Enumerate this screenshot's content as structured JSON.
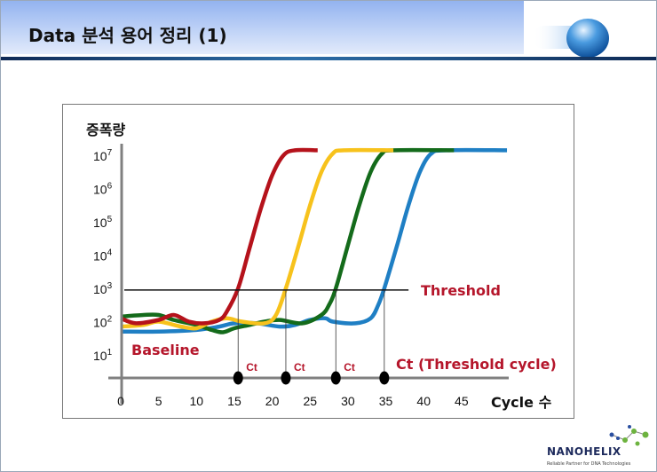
{
  "header": {
    "title": "Data 분석 용어 정리 (1)"
  },
  "logo": {
    "name": "NANOHELIX",
    "tagline": "Reliable Partner for DNA Technologies"
  },
  "chart_data": {
    "type": "line",
    "title": "",
    "ylabel": "증폭량",
    "xlabel": "Cycle 수",
    "y_scale": "log10",
    "ylim_log10": [
      0.3,
      7.4
    ],
    "xlim": [
      0,
      52
    ],
    "x_ticks": [
      "0",
      "5",
      "10",
      "15",
      "20",
      "25",
      "30",
      "35",
      "40",
      "45"
    ],
    "x_tick_values": [
      0,
      5,
      10,
      15,
      20,
      25,
      30,
      35,
      40,
      45
    ],
    "y_ticks": [
      {
        "base": "10",
        "exp": "7",
        "value": 7
      },
      {
        "base": "10",
        "exp": "6",
        "value": 6
      },
      {
        "base": "10",
        "exp": "5",
        "value": 5
      },
      {
        "base": "10",
        "exp": "4",
        "value": 4
      },
      {
        "base": "10",
        "exp": "3",
        "value": 3
      },
      {
        "base": "10",
        "exp": "2",
        "value": 2
      },
      {
        "base": "10",
        "exp": "1",
        "value": 1
      }
    ],
    "threshold": {
      "label": "Threshold",
      "log10_value": 2.95,
      "x_end": 38
    },
    "baseline_label": "Baseline",
    "ct_label": "Ct",
    "ct_legend": "Ct (Threshold cycle)",
    "ct_values": [
      15.5,
      21.8,
      28.4,
      34.8
    ],
    "series": [
      {
        "name": "blue",
        "color": "#1f7fc4",
        "points": [
          [
            0,
            1.7
          ],
          [
            5,
            1.7
          ],
          [
            10,
            1.75
          ],
          [
            13,
            1.85
          ],
          [
            15,
            1.95
          ],
          [
            18,
            1.95
          ],
          [
            21,
            1.85
          ],
          [
            23,
            1.9
          ],
          [
            25,
            2.05
          ],
          [
            27,
            2.1
          ],
          [
            28,
            2.0
          ],
          [
            31,
            1.95
          ],
          [
            33,
            2.1
          ],
          [
            34,
            2.5
          ],
          [
            34.8,
            3
          ],
          [
            36.5,
            4.3
          ],
          [
            38,
            5.5
          ],
          [
            39.5,
            6.5
          ],
          [
            41,
            7.05
          ],
          [
            43,
            7.15
          ],
          [
            51,
            7.15
          ]
        ]
      },
      {
        "name": "green",
        "color": "#146b1b",
        "points": [
          [
            0,
            2.15
          ],
          [
            3,
            2.2
          ],
          [
            5,
            2.2
          ],
          [
            7,
            2.05
          ],
          [
            10,
            1.9
          ],
          [
            12,
            1.75
          ],
          [
            13.5,
            1.68
          ],
          [
            15,
            1.8
          ],
          [
            17,
            1.9
          ],
          [
            19,
            2.0
          ],
          [
            21,
            2.05
          ],
          [
            24,
            1.95
          ],
          [
            26.5,
            2.2
          ],
          [
            27.5,
            2.5
          ],
          [
            28.4,
            3
          ],
          [
            30,
            4.3
          ],
          [
            31.5,
            5.5
          ],
          [
            33,
            6.5
          ],
          [
            34.5,
            7.05
          ],
          [
            36,
            7.15
          ],
          [
            44,
            7.15
          ]
        ]
      },
      {
        "name": "yellow",
        "color": "#f7c21c",
        "points": [
          [
            0,
            1.85
          ],
          [
            3,
            1.9
          ],
          [
            5,
            2.0
          ],
          [
            8,
            1.85
          ],
          [
            10,
            1.8
          ],
          [
            12,
            2.0
          ],
          [
            14,
            2.1
          ],
          [
            16,
            2.0
          ],
          [
            19,
            1.95
          ],
          [
            20.5,
            2.2
          ],
          [
            21.8,
            3
          ],
          [
            23.5,
            4.3
          ],
          [
            25,
            5.5
          ],
          [
            26.5,
            6.5
          ],
          [
            28,
            7.05
          ],
          [
            29.5,
            7.15
          ],
          [
            36,
            7.15
          ]
        ]
      },
      {
        "name": "red",
        "color": "#b5121b",
        "points": [
          [
            0,
            2.1
          ],
          [
            2,
            1.95
          ],
          [
            5,
            2.05
          ],
          [
            7,
            2.2
          ],
          [
            9,
            2.0
          ],
          [
            11,
            1.95
          ],
          [
            13,
            2.05
          ],
          [
            14,
            2.3
          ],
          [
            15.5,
            3
          ],
          [
            17,
            4.2
          ],
          [
            18.5,
            5.4
          ],
          [
            20,
            6.4
          ],
          [
            21.5,
            7.0
          ],
          [
            23,
            7.15
          ],
          [
            26,
            7.15
          ]
        ]
      }
    ]
  }
}
